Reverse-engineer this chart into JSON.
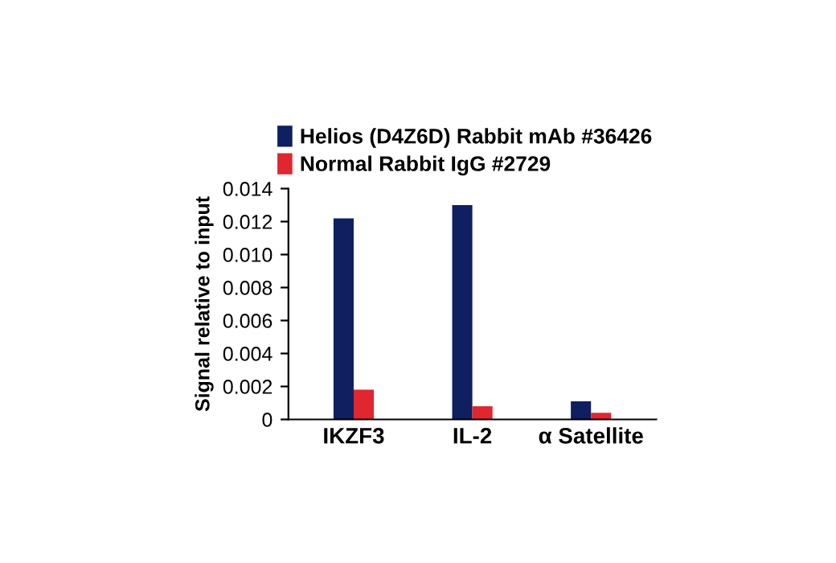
{
  "chart_data": {
    "type": "bar",
    "ylabel": "Signal relative to input",
    "categories": [
      "IKZF3",
      "IL-2",
      "α Satellite"
    ],
    "series": [
      {
        "name": "Helios (D4Z6D) Rabbit mAb #36426",
        "color": "#0f1f5f",
        "values": [
          0.0122,
          0.013,
          0.0011
        ]
      },
      {
        "name": "Normal Rabbit IgG #2729",
        "color": "#e0262e",
        "values": [
          0.0018,
          0.0008,
          0.0004
        ]
      }
    ],
    "ylim": [
      0,
      0.014
    ],
    "yticks": [
      0,
      0.002,
      0.004,
      0.006,
      0.008,
      {
        "value": 0.01,
        "label": "0.010"
      },
      0.012,
      0.014
    ],
    "grid": false,
    "legend": "top"
  }
}
